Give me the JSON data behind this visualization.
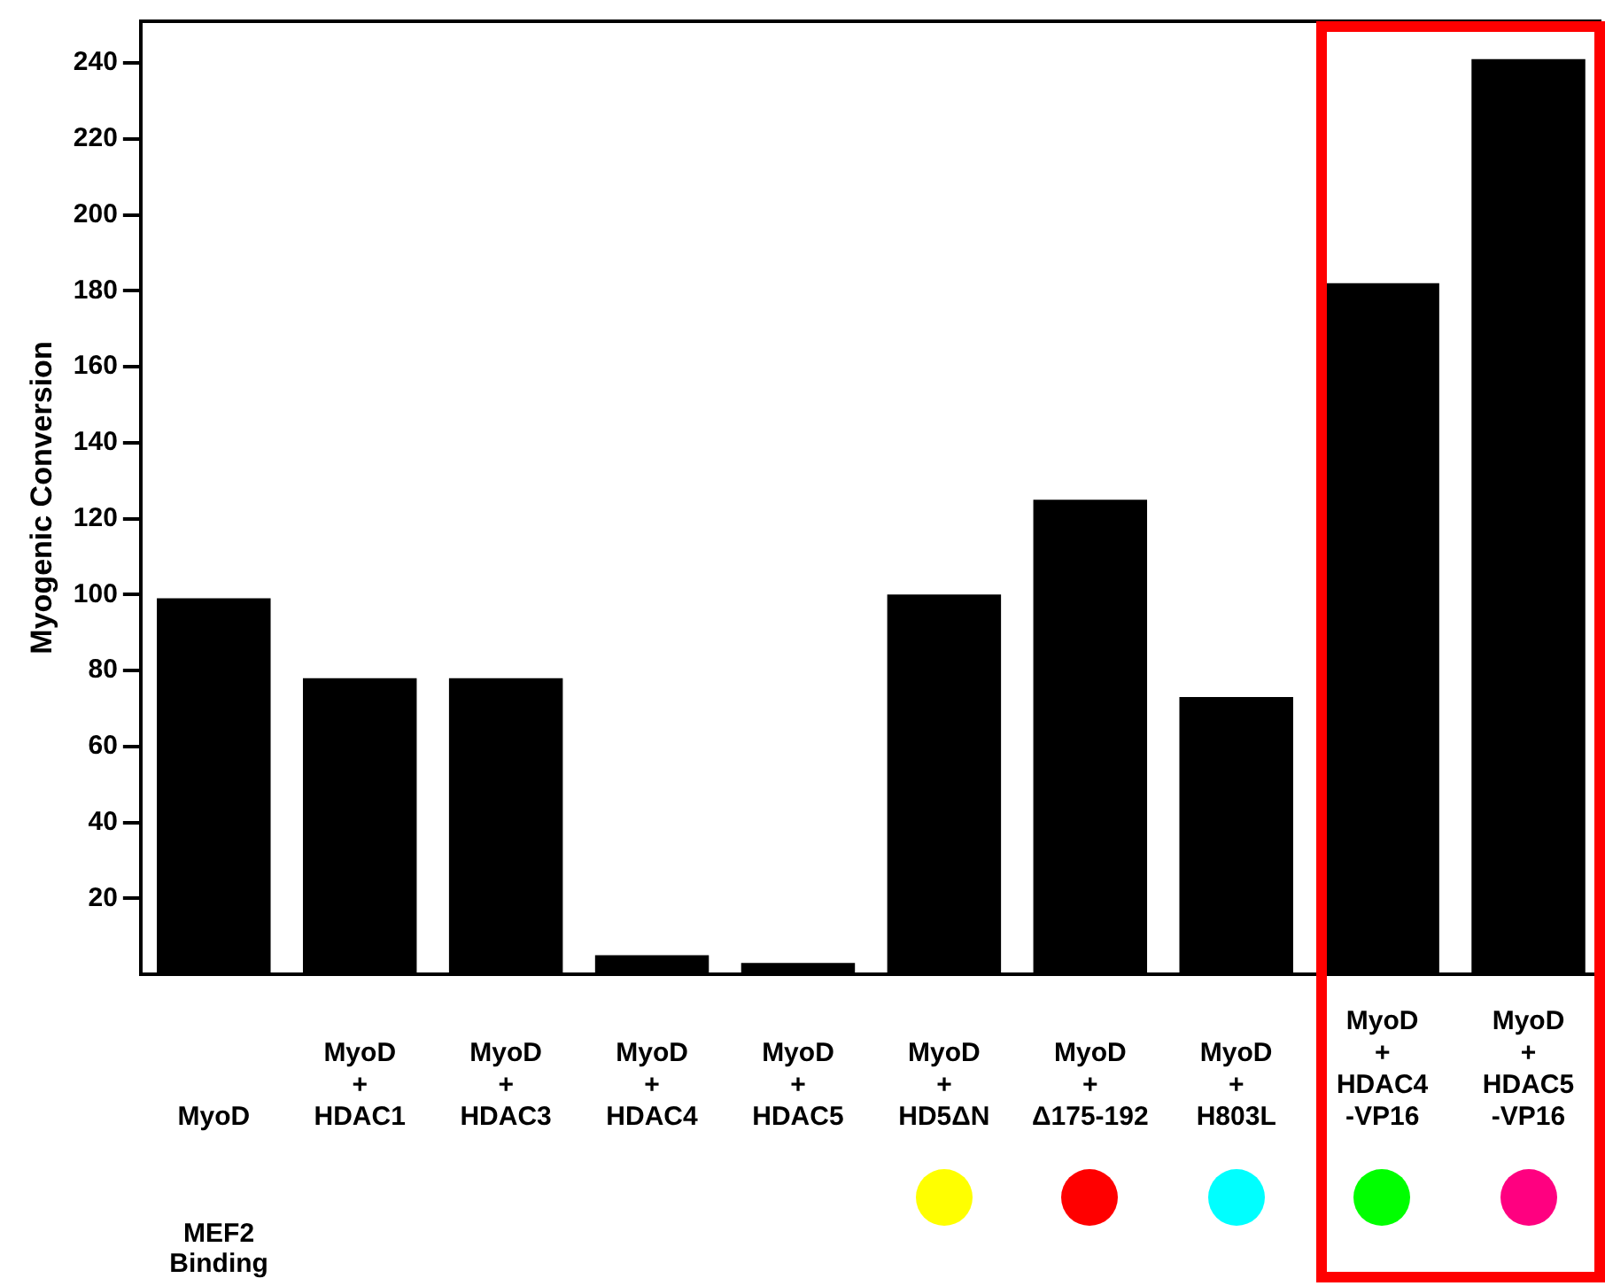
{
  "chart_data": {
    "type": "bar",
    "ylabel": "Myogenic Conversion",
    "categories": [
      "MyoD",
      "MyoD\n+\nHDAC1",
      "MyoD\n+\nHDAC3",
      "MyoD\n+\nHDAC4",
      "MyoD\n+\nHDAC5",
      "MyoD\n+\nHD5ΔN",
      "MyoD\n+\nΔ175-192",
      "MyoD\n+\nH803L",
      "MyoD\n+\nHDAC4\n-VP16",
      "MyoD\n+\nHDAC5\n-VP16"
    ],
    "values": [
      99,
      78,
      78,
      5,
      3,
      100,
      125,
      73,
      182,
      241
    ],
    "color": "#000000",
    "ylim": [
      0,
      251
    ],
    "yticks": [
      20,
      40,
      60,
      80,
      100,
      120,
      140,
      160,
      180,
      200,
      220,
      240
    ],
    "grid": false,
    "legend": false,
    "annotations": [
      "MEF2\nBinding"
    ]
  }
}
